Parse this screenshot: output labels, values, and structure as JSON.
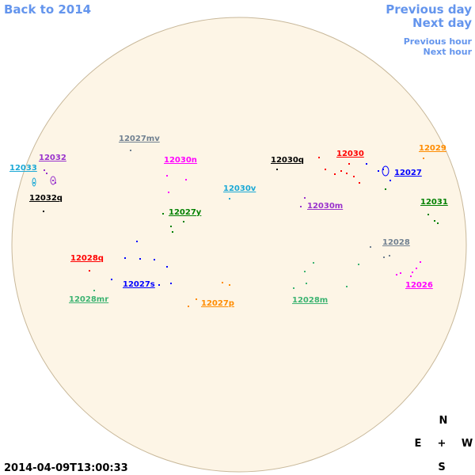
{
  "nav": {
    "back": "Back to 2014",
    "previous_day": "Previous day",
    "next_day": "Next day",
    "previous_hour": "Previous hour",
    "next_hour": "Next hour",
    "color": "#6495ed"
  },
  "timestamp": "2014-04-09T13:00:33",
  "compass": {
    "north": "N",
    "east": "E",
    "center": "+",
    "west": "W",
    "south": "S"
  },
  "regions": [
    {
      "label": "12027mv",
      "color": "#708090"
    },
    {
      "label": "12032",
      "color": "#9932cc"
    },
    {
      "label": "12033",
      "color": "#1ca9d6"
    },
    {
      "label": "12032q",
      "color": "#000000"
    },
    {
      "label": "12030n",
      "color": "#ff00ff"
    },
    {
      "label": "12030v",
      "color": "#1ca9d6"
    },
    {
      "label": "12027y",
      "color": "#008000"
    },
    {
      "label": "12030q",
      "color": "#000000"
    },
    {
      "label": "12030",
      "color": "#ff0000"
    },
    {
      "label": "12029",
      "color": "#ff8c00"
    },
    {
      "label": "12027",
      "color": "#0000ff"
    },
    {
      "label": "12031",
      "color": "#008000"
    },
    {
      "label": "12030m",
      "color": "#9932cc"
    },
    {
      "label": "12028",
      "color": "#708090"
    },
    {
      "label": "12026",
      "color": "#ff00ff"
    },
    {
      "label": "12028q",
      "color": "#ff0000"
    },
    {
      "label": "12027s",
      "color": "#0000ff"
    },
    {
      "label": "12028mr",
      "color": "#3cb371"
    },
    {
      "label": "12027p",
      "color": "#ff8c00"
    },
    {
      "label": "12028m",
      "color": "#3cb371"
    }
  ]
}
